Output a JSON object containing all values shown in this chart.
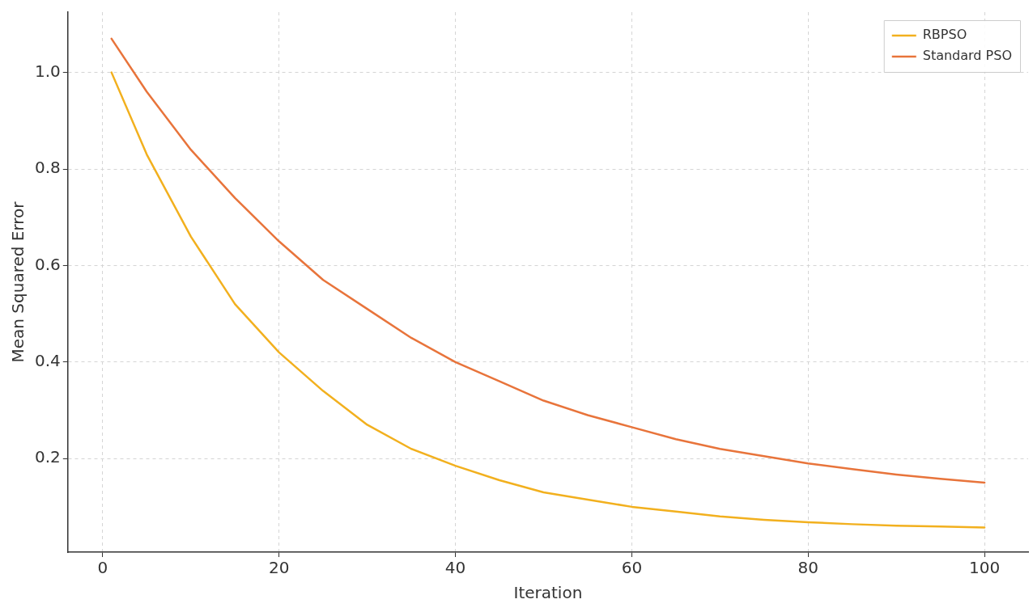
{
  "chart_data": {
    "type": "line",
    "xlabel": "Iteration",
    "ylabel": "Mean Squared Error",
    "x": [
      1,
      5,
      10,
      15,
      20,
      25,
      30,
      35,
      40,
      45,
      50,
      55,
      60,
      65,
      70,
      75,
      80,
      85,
      90,
      95,
      100
    ],
    "series": [
      {
        "name": "RBPSO",
        "color": "#f2b01e",
        "values": [
          1.0,
          0.83,
          0.66,
          0.52,
          0.42,
          0.34,
          0.27,
          0.22,
          0.185,
          0.155,
          0.13,
          0.115,
          0.1,
          0.09,
          0.08,
          0.073,
          0.068,
          0.064,
          0.061,
          0.059,
          0.057
        ]
      },
      {
        "name": "Standard PSO",
        "color": "#e8743b",
        "values": [
          1.07,
          0.96,
          0.84,
          0.74,
          0.65,
          0.57,
          0.51,
          0.45,
          0.4,
          0.36,
          0.32,
          0.29,
          0.265,
          0.24,
          0.22,
          0.205,
          0.19,
          0.178,
          0.167,
          0.158,
          0.15
        ]
      }
    ],
    "xlim": [
      -3.95,
      104.95
    ],
    "xticks": [
      0,
      20,
      40,
      60,
      80,
      100
    ],
    "ylim": [
      0.006,
      1.125
    ],
    "yticks": [
      0.2,
      0.4,
      0.6,
      0.8,
      {
        "value": 1,
        "label": "1.0"
      }
    ],
    "grid": true,
    "legend": "top right",
    "marker": "none",
    "line_style": "solid"
  }
}
